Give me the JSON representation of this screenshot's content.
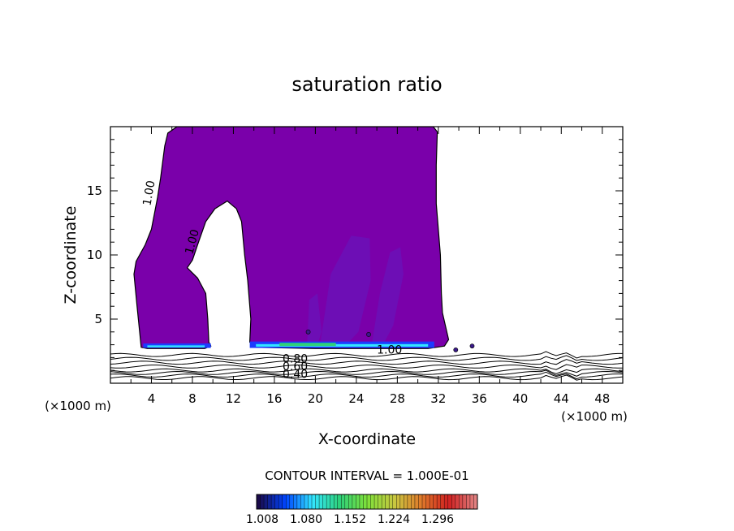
{
  "chart_data": {
    "type": "contour",
    "title": "saturation ratio",
    "xlabel": "X-coordinate",
    "ylabel": "Z-coordinate",
    "x_unit_label": "(×1000 m)",
    "y_unit_label": "(×1000 m)",
    "xlim": [
      0,
      50
    ],
    "ylim": [
      0,
      20
    ],
    "x_ticks": [
      4,
      8,
      12,
      16,
      20,
      24,
      28,
      32,
      36,
      40,
      44,
      48
    ],
    "y_ticks": [
      5,
      10,
      15
    ],
    "contour_labels": [
      "1.00",
      "1.00",
      "1.00",
      "0.80",
      "0.60",
      "0.40"
    ],
    "contour_interval_text": "CONTOUR INTERVAL = 1.000E-01",
    "colorbar": {
      "tick_labels": [
        "1.008",
        "1.080",
        "1.152",
        "1.224",
        "1.296"
      ],
      "colors": [
        "#1a0a4a",
        "#0044ff",
        "#33e6ff",
        "#2ed17a",
        "#7ee03a",
        "#c8c840",
        "#e07a2a",
        "#d02020",
        "#e08080"
      ]
    },
    "fill_color": "#7a00aa",
    "cloud_profile": {
      "description_levels_km": [
        2.8,
        20
      ],
      "left_edge_x": [
        [
          3.0,
          2.8
        ],
        [
          2.6,
          8.5
        ],
        [
          3.4,
          10.8
        ],
        [
          4.0,
          12.0
        ],
        [
          4.9,
          16.0
        ],
        [
          5.6,
          19.5
        ]
      ],
      "inner_gap_x": [
        [
          9.6,
          3.0
        ],
        [
          9.5,
          7.0
        ],
        [
          7.5,
          9.0
        ],
        [
          9.0,
          13.0
        ],
        [
          11.4,
          14.2
        ],
        [
          12.8,
          12.6
        ],
        [
          13.1,
          8.0
        ],
        [
          13.7,
          3.5
        ]
      ],
      "right_edge_x": [
        [
          31.9,
          19.6
        ],
        [
          31.8,
          14.0
        ],
        [
          32.2,
          10.0
        ],
        [
          32.4,
          5.5
        ],
        [
          33.0,
          3.2
        ]
      ]
    },
    "near_surface_contours_z": [
      0.4,
      0.6,
      0.8,
      1.0,
      1.3,
      1.6,
      1.9,
      2.2
    ]
  }
}
